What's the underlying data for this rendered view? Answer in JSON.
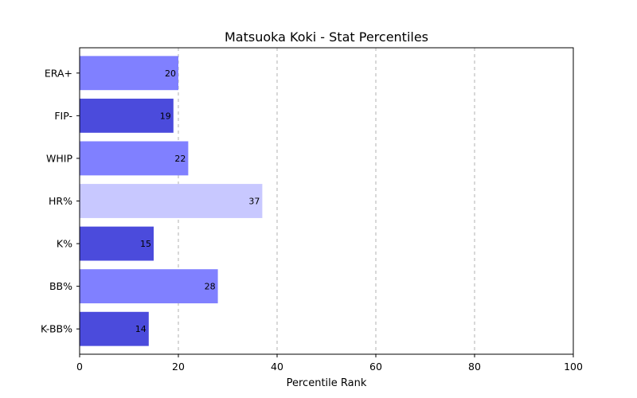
{
  "chart_data": {
    "type": "bar",
    "orientation": "horizontal",
    "title": "Matsuoka Koki - Stat Percentiles",
    "xlabel": "Percentile Rank",
    "ylabel": "",
    "xlim": [
      0,
      100
    ],
    "xticks": [
      "0",
      "20",
      "40",
      "60",
      "80",
      "100"
    ],
    "grid": "x, dashed",
    "categories": [
      "ERA+",
      "FIP-",
      "WHIP",
      "HR%",
      "K%",
      "BB%",
      "K-BB%"
    ],
    "values": [
      20,
      19,
      22,
      37,
      15,
      28,
      14
    ],
    "value_labels": [
      "20",
      "19",
      "22",
      "37",
      "15",
      "28",
      "14"
    ],
    "colors": [
      "#8080ff",
      "#4b4bdc",
      "#8080ff",
      "#c8c8ff",
      "#4b4bdc",
      "#8080ff",
      "#4b4bdc"
    ]
  }
}
